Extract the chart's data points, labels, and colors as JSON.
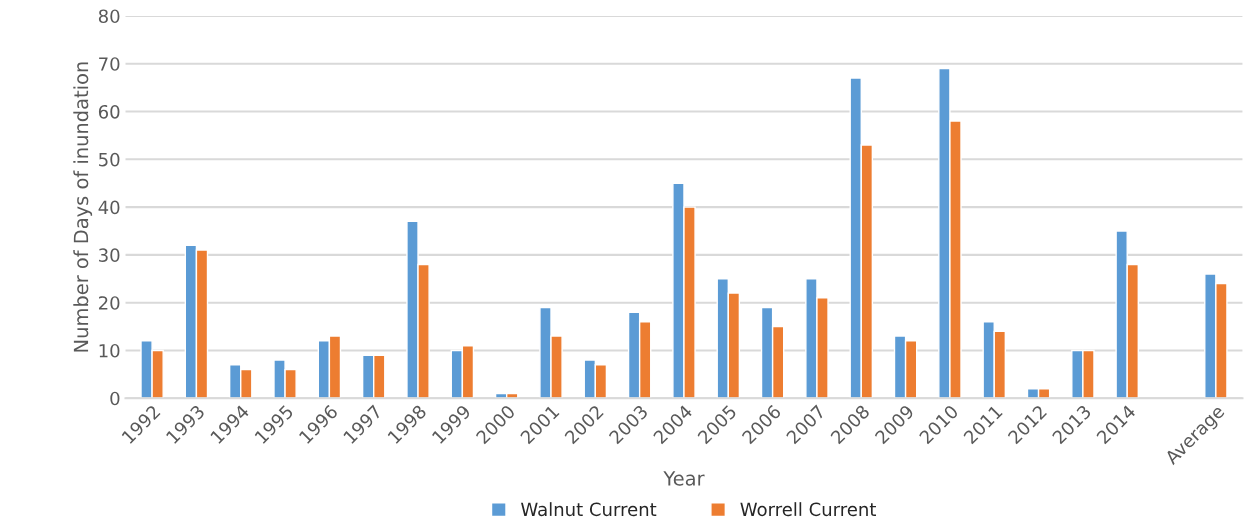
{
  "chart_data": {
    "type": "bar",
    "xlabel": "Year",
    "ylabel": "Number of Days of inundation",
    "categories": [
      "1992",
      "1993",
      "1994",
      "1995",
      "1996",
      "1997",
      "1998",
      "1999",
      "2000",
      "2001",
      "2002",
      "2003",
      "2004",
      "2005",
      "2006",
      "2007",
      "2008",
      "2009",
      "2010",
      "2011",
      "2012",
      "2013",
      "2014",
      null,
      "Average"
    ],
    "series": [
      {
        "name": "Walnut Current",
        "color": "#5b9bd5",
        "values": [
          12,
          32,
          7,
          8,
          12,
          9,
          37,
          10,
          1,
          19,
          8,
          18,
          45,
          25,
          19,
          25,
          67,
          13,
          69,
          16,
          2,
          10,
          35,
          null,
          26
        ]
      },
      {
        "name": "Worrell Current",
        "color": "#ed7d31",
        "values": [
          10,
          31,
          6,
          6,
          13,
          9,
          28,
          11,
          1,
          13,
          7,
          16,
          40,
          22,
          15,
          21,
          53,
          12,
          58,
          14,
          2,
          10,
          28,
          null,
          24
        ]
      }
    ],
    "ylim": [
      0,
      80
    ],
    "yticks": [
      0,
      10,
      20,
      30,
      40,
      50,
      60,
      70,
      80
    ],
    "grid": "y",
    "legend": "bottom"
  }
}
